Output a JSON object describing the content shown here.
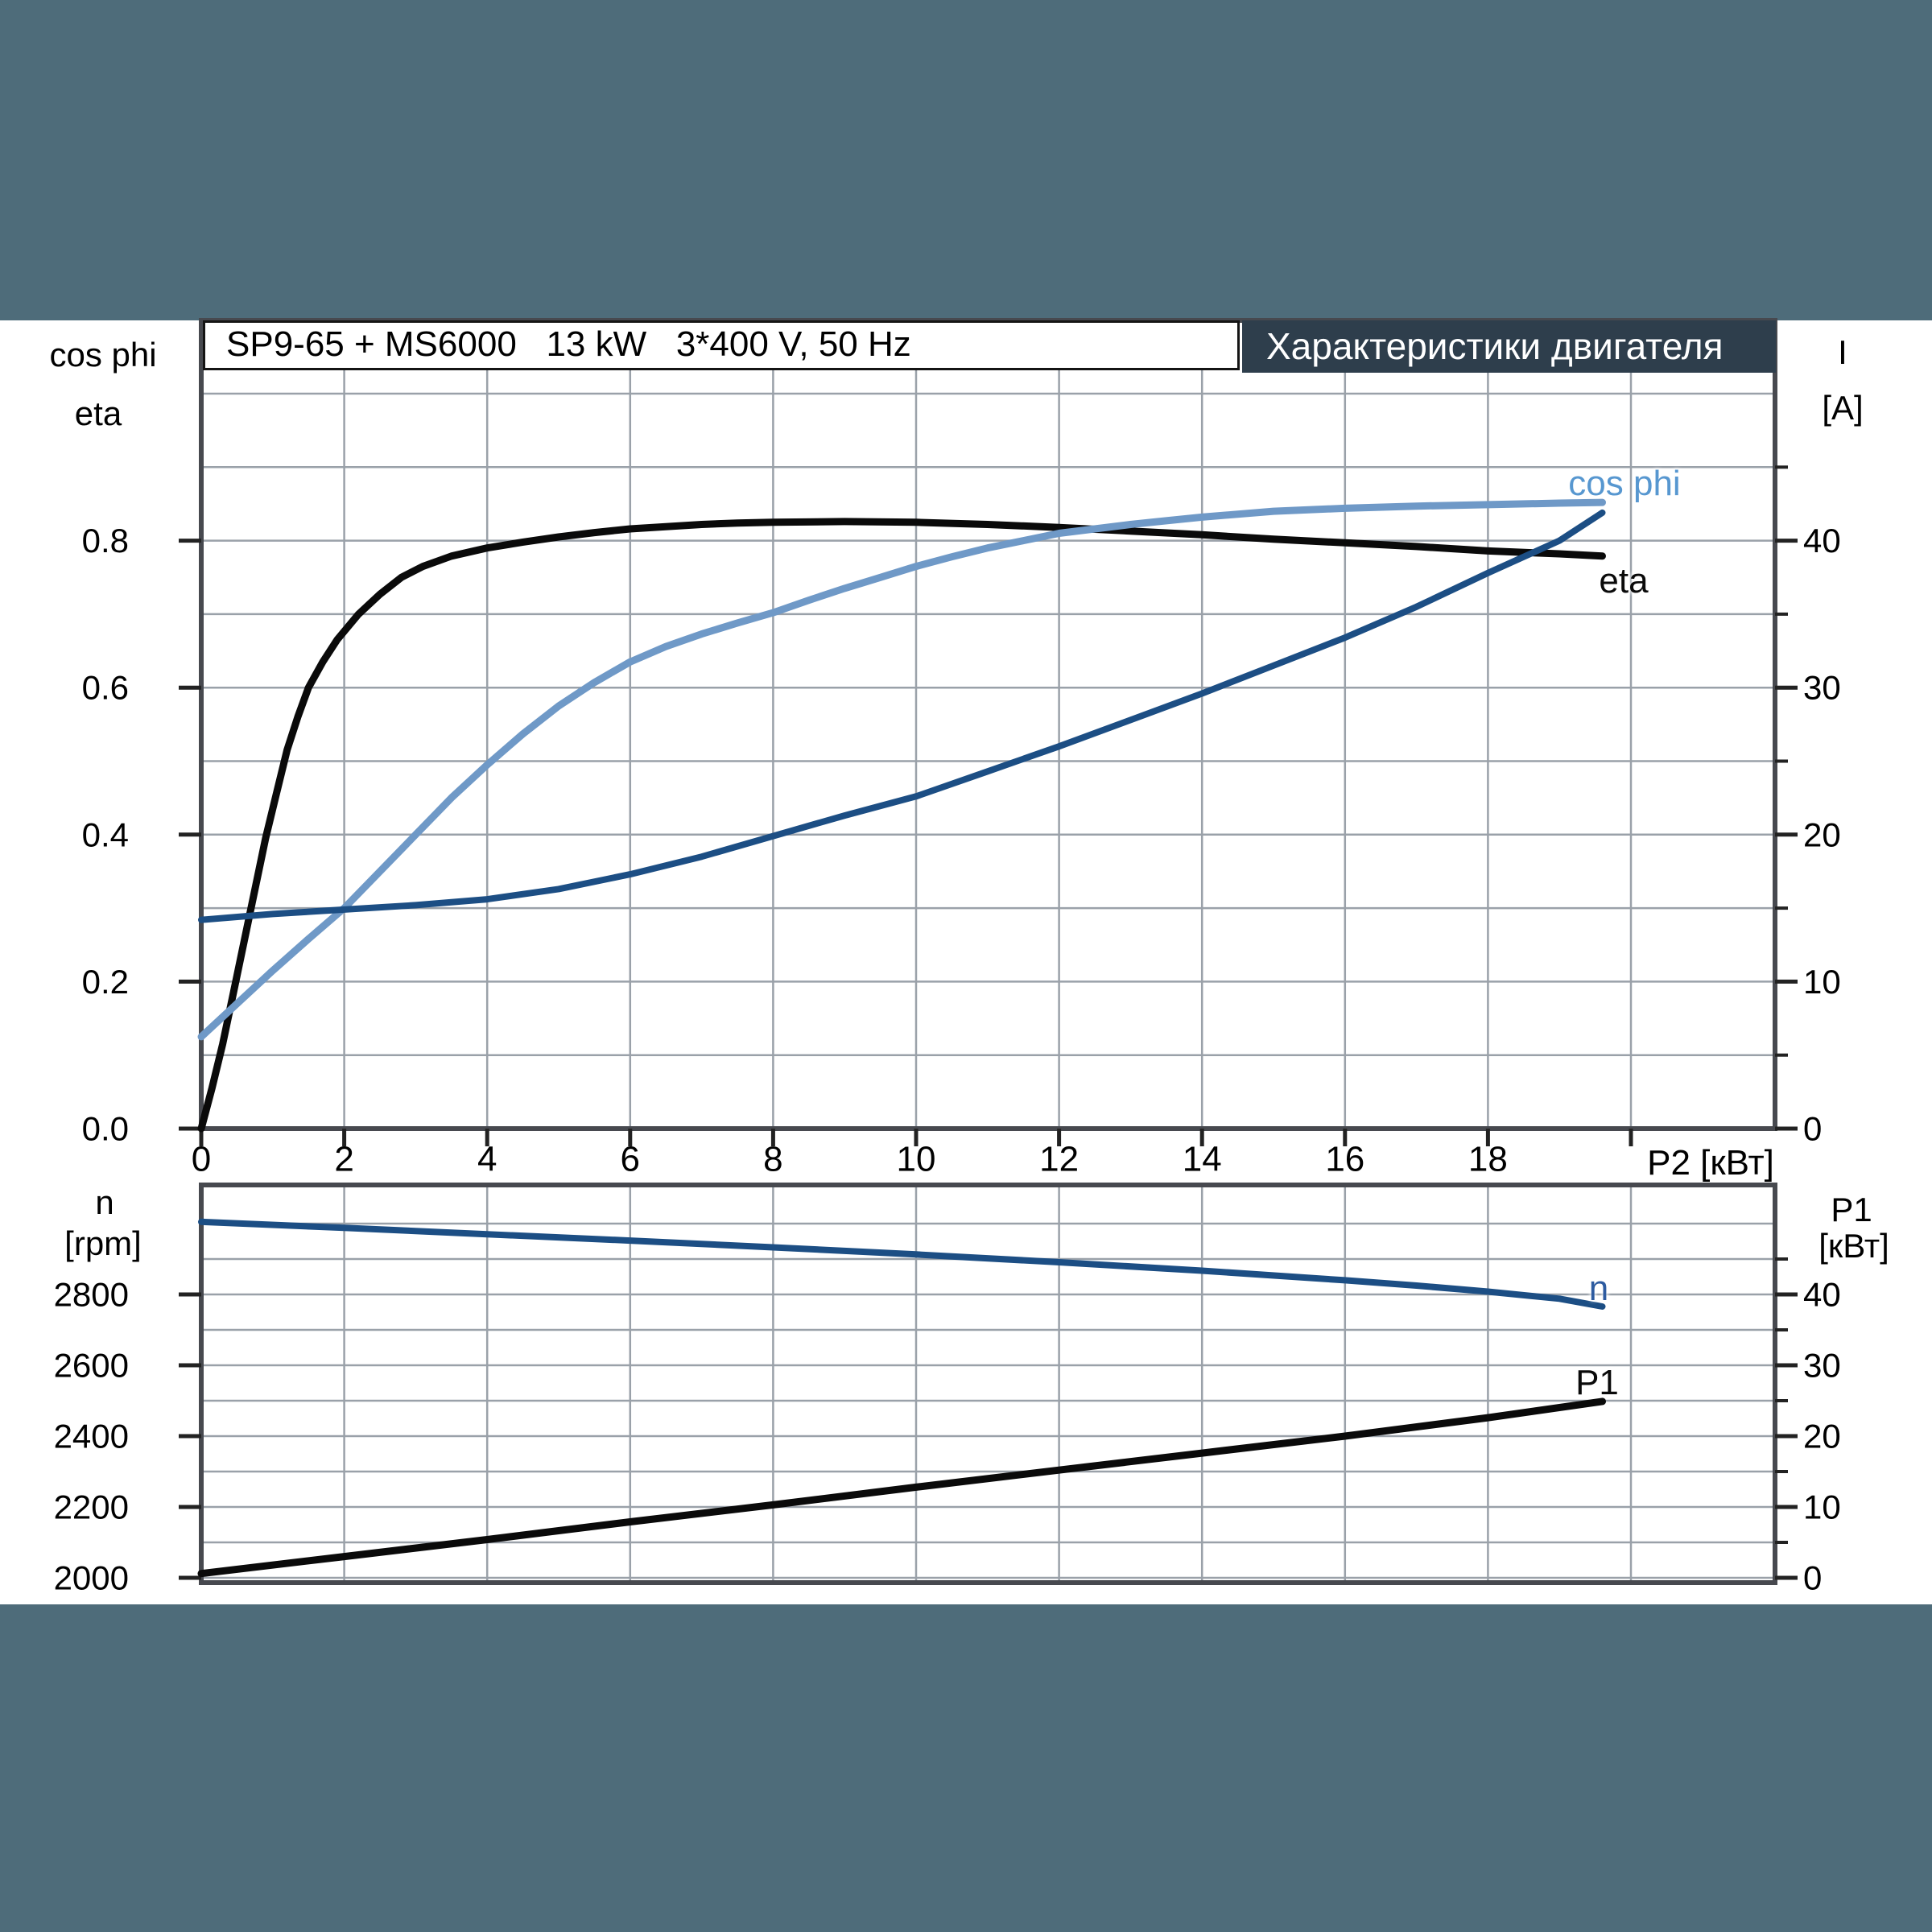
{
  "page": {
    "background": "#4e6c7a",
    "panel_background": "#ffffff"
  },
  "header": {
    "title_box": "SP9-65 + MS6000   13 kW   3*400 V, 50 Hz",
    "banner": "Характеристики двигателя",
    "banner_bg": "#2e3e4c"
  },
  "top_chart": {
    "left_axis_title_1": "cos phi",
    "left_axis_title_2": "eta",
    "right_axis_title_1": "I",
    "right_axis_title_2": "[A]",
    "x_axis_label": "P2 [кВт]",
    "curve_labels": {
      "cos_phi": "cos phi",
      "eta": "eta"
    }
  },
  "bottom_chart": {
    "left_axis_title_1": "n",
    "left_axis_title_2": "[rpm]",
    "right_axis_title_1": "P1",
    "right_axis_title_2": "[кВт]",
    "curve_labels": {
      "n": "n",
      "p1": "P1"
    }
  },
  "colors": {
    "gridline": "#9aa1a9",
    "plot_border": "#47494f",
    "eta_curve": "#0a0a0a",
    "cos_phi_curve": "#6f99c7",
    "current_curve": "#1c4e84",
    "cos_phi_label": "#5797d0",
    "n_label": "#2d5ba0"
  },
  "chart_data": [
    {
      "type": "line",
      "title": "SP9-65 + MS6000 13 kW 3*400 V, 50 Hz",
      "xlabel": "P2 [кВт]",
      "x_range": [
        0,
        22
      ],
      "x_gridline_step": 2,
      "x_tick_values": [
        0,
        2,
        4,
        6,
        8,
        10,
        12,
        14,
        16,
        18,
        20
      ],
      "x_tick_labels": [
        "0",
        "2",
        "4",
        "6",
        "8",
        "10",
        "12",
        "14",
        "16",
        "18",
        ""
      ],
      "grid": true,
      "legend_position": "inline-curve-labels",
      "left_axis": {
        "label": "cos phi / eta",
        "range": [
          0,
          1.1
        ],
        "gridline_step": 0.1,
        "tick_values": [
          0.0,
          0.2,
          0.4,
          0.6,
          0.8
        ],
        "tick_labels": [
          "0.0",
          "0.2",
          "0.4",
          "0.6",
          "0.8"
        ]
      },
      "right_axis": {
        "label": "I [A]",
        "range": [
          0,
          55
        ],
        "tick_values": [
          0,
          10,
          20,
          30,
          40
        ],
        "tick_labels": [
          "0",
          "10",
          "20",
          "30",
          "40"
        ],
        "minor_tick_values": [
          5,
          15,
          25,
          35,
          45
        ]
      },
      "series": [
        {
          "name": "eta",
          "axis": "left",
          "color": "#0a0a0a",
          "width": 9,
          "points": [
            [
              0,
              0
            ],
            [
              0.15,
              0.055
            ],
            [
              0.3,
              0.115
            ],
            [
              0.45,
              0.185
            ],
            [
              0.6,
              0.255
            ],
            [
              0.75,
              0.325
            ],
            [
              0.9,
              0.395
            ],
            [
              1.05,
              0.455
            ],
            [
              1.2,
              0.515
            ],
            [
              1.35,
              0.56
            ],
            [
              1.5,
              0.6
            ],
            [
              1.7,
              0.635
            ],
            [
              1.9,
              0.665
            ],
            [
              2.2,
              0.7
            ],
            [
              2.5,
              0.727
            ],
            [
              2.8,
              0.75
            ],
            [
              3.1,
              0.765
            ],
            [
              3.5,
              0.779
            ],
            [
              4,
              0.79
            ],
            [
              4.5,
              0.798
            ],
            [
              5,
              0.805
            ],
            [
              5.5,
              0.811
            ],
            [
              6,
              0.816
            ],
            [
              6.5,
              0.819
            ],
            [
              7,
              0.822
            ],
            [
              7.5,
              0.824
            ],
            [
              8,
              0.825
            ],
            [
              9,
              0.826
            ],
            [
              10,
              0.825
            ],
            [
              11,
              0.822
            ],
            [
              12,
              0.818
            ],
            [
              13,
              0.813
            ],
            [
              14,
              0.808
            ],
            [
              15,
              0.802
            ],
            [
              16,
              0.797
            ],
            [
              17,
              0.792
            ],
            [
              18,
              0.786
            ],
            [
              19,
              0.782
            ],
            [
              19.6,
              0.779
            ]
          ]
        },
        {
          "name": "cos phi",
          "axis": "left",
          "color": "#6f99c7",
          "width": 9,
          "points": [
            [
              0,
              0.125
            ],
            [
              0.5,
              0.17
            ],
            [
              1,
              0.215
            ],
            [
              1.5,
              0.258
            ],
            [
              2,
              0.3
            ],
            [
              2.5,
              0.35
            ],
            [
              3,
              0.4
            ],
            [
              3.5,
              0.45
            ],
            [
              4,
              0.495
            ],
            [
              4.5,
              0.537
            ],
            [
              5,
              0.575
            ],
            [
              5.5,
              0.607
            ],
            [
              6,
              0.635
            ],
            [
              6.5,
              0.656
            ],
            [
              7,
              0.673
            ],
            [
              7.5,
              0.688
            ],
            [
              8,
              0.702
            ],
            [
              8.5,
              0.719
            ],
            [
              9,
              0.735
            ],
            [
              9.5,
              0.75
            ],
            [
              10,
              0.765
            ],
            [
              10.5,
              0.778
            ],
            [
              11,
              0.79
            ],
            [
              11.5,
              0.8
            ],
            [
              12,
              0.81
            ],
            [
              12.5,
              0.816
            ],
            [
              13,
              0.822
            ],
            [
              13.5,
              0.827
            ],
            [
              14,
              0.832
            ],
            [
              15,
              0.84
            ],
            [
              16,
              0.844
            ],
            [
              17,
              0.847
            ],
            [
              18,
              0.849
            ],
            [
              19,
              0.851
            ],
            [
              19.6,
              0.852
            ]
          ]
        },
        {
          "name": "I",
          "axis": "right",
          "color": "#1c4e84",
          "width": 8,
          "points": [
            [
              0,
              14.2
            ],
            [
              1,
              14.6
            ],
            [
              2,
              14.9
            ],
            [
              3,
              15.2
            ],
            [
              4,
              15.6
            ],
            [
              5,
              16.3
            ],
            [
              6,
              17.3
            ],
            [
              7,
              18.5
            ],
            [
              8,
              19.9
            ],
            [
              9,
              21.3
            ],
            [
              10,
              22.6
            ],
            [
              11,
              24.3
            ],
            [
              12,
              26.0
            ],
            [
              13,
              27.8
            ],
            [
              14,
              29.6
            ],
            [
              15,
              31.5
            ],
            [
              16,
              33.4
            ],
            [
              17,
              35.5
            ],
            [
              18,
              37.8
            ],
            [
              19,
              40.0
            ],
            [
              19.6,
              41.9
            ]
          ]
        }
      ]
    },
    {
      "type": "line",
      "title": "speed and input power",
      "xlabel": "",
      "x_range": [
        0,
        22
      ],
      "x_gridline_step": 2,
      "x_tick_values": [],
      "x_tick_labels": [],
      "grid": true,
      "left_axis": {
        "label": "n [rpm]",
        "range": [
          1984,
          3110
        ],
        "gridline_step": 100,
        "tick_values": [
          2000,
          2200,
          2400,
          2600,
          2800
        ],
        "tick_labels": [
          "2000",
          "2200",
          "2400",
          "2600",
          "2800"
        ]
      },
      "right_axis": {
        "label": "P1 [кВт]",
        "range": [
          0,
          56
        ],
        "tick_values": [
          0,
          10,
          20,
          30,
          40
        ],
        "tick_labels": [
          "0",
          "10",
          "20",
          "30",
          "40"
        ],
        "minor_tick_values": [
          5,
          15,
          25,
          35,
          45
        ]
      },
      "series": [
        {
          "name": "n",
          "axis": "left",
          "color": "#1c4e84",
          "width": 8,
          "points": [
            [
              0,
              3005
            ],
            [
              2,
              2988
            ],
            [
              4,
              2970
            ],
            [
              6,
              2952
            ],
            [
              8,
              2933
            ],
            [
              10,
              2913
            ],
            [
              12,
              2891
            ],
            [
              14,
              2867
            ],
            [
              16,
              2840
            ],
            [
              17,
              2825
            ],
            [
              18,
              2808
            ],
            [
              19,
              2788
            ],
            [
              19.6,
              2766
            ]
          ]
        },
        {
          "name": "P1",
          "axis": "right",
          "color": "#0a0a0a",
          "width": 9,
          "points": [
            [
              0,
              0.6
            ],
            [
              2,
              3.0
            ],
            [
              4,
              5.4
            ],
            [
              6,
              7.9
            ],
            [
              8,
              10.3
            ],
            [
              10,
              12.8
            ],
            [
              12,
              15.2
            ],
            [
              14,
              17.6
            ],
            [
              16,
              20.0
            ],
            [
              18,
              22.6
            ],
            [
              19.6,
              24.9
            ]
          ]
        }
      ]
    }
  ]
}
